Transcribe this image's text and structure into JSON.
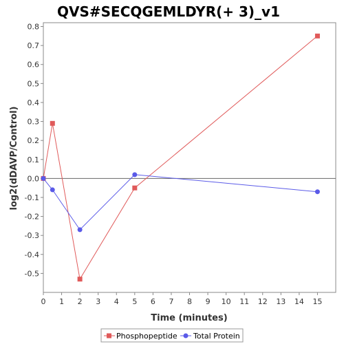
{
  "chart_data": {
    "type": "line",
    "title": "QVS#SECQGEMLDYR(+ 3)_v1",
    "xlabel": "Time (minutes)",
    "ylabel": "log2(dDAVP/Control)",
    "xlim": [
      0,
      16
    ],
    "ylim": [
      -0.6,
      0.82
    ],
    "x_ticks": [
      0,
      1,
      2,
      3,
      4,
      5,
      6,
      7,
      8,
      9,
      10,
      11,
      12,
      13,
      14,
      15
    ],
    "y_ticks": [
      -0.5,
      -0.4,
      -0.3,
      -0.2,
      -0.1,
      0.0,
      0.1,
      0.2,
      0.3,
      0.4,
      0.5,
      0.6,
      0.7,
      0.8
    ],
    "x_tick_labels": [
      "0",
      "1",
      "2",
      "3",
      "4",
      "5",
      "6",
      "7",
      "8",
      "9",
      "10",
      "11",
      "12",
      "13",
      "14",
      "15"
    ],
    "y_tick_labels": [
      "-0.5",
      "-0.4",
      "-0.3",
      "-0.2",
      "-0.1",
      "0.0",
      "0.1",
      "0.2",
      "0.3",
      "0.4",
      "0.5",
      "0.6",
      "0.7",
      "0.8"
    ],
    "zero_line": true,
    "grid": false,
    "legend_position": "bottom",
    "series": [
      {
        "name": "Phosphopeptide",
        "color": "#e05a5a",
        "marker": "square",
        "x": [
          0,
          0.5,
          2,
          5,
          15
        ],
        "y": [
          0.0,
          0.29,
          -0.53,
          -0.05,
          0.75
        ]
      },
      {
        "name": "Total Protein",
        "color": "#5a5ae8",
        "marker": "circle",
        "x": [
          0,
          0.5,
          2,
          5,
          15
        ],
        "y": [
          0.0,
          -0.06,
          -0.27,
          0.02,
          -0.07
        ]
      }
    ]
  }
}
